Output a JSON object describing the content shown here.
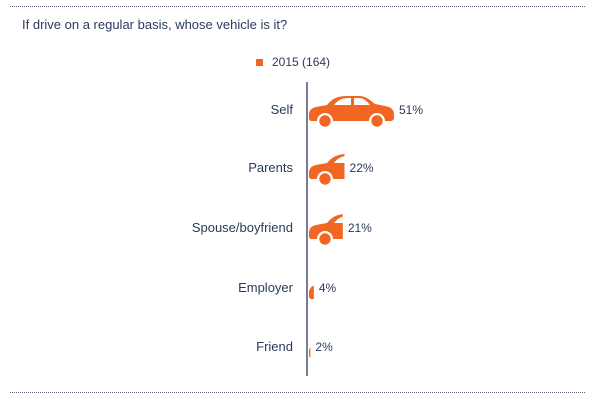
{
  "title": "If drive on a regular basis, whose vehicle is it?",
  "chart_data": {
    "type": "bar",
    "orientation": "horizontal",
    "title": "If drive on a regular basis, whose vehicle is it?",
    "categories": [
      "Self",
      "Parents",
      "Spouse/boyfriend",
      "Employer",
      "Friend"
    ],
    "series": [
      {
        "name": "2015 (164)",
        "values": [
          51,
          22,
          21,
          4,
          2
        ],
        "labels": [
          "51%",
          "22%",
          "21%",
          "4%",
          "2%"
        ],
        "color": "#f26522"
      }
    ],
    "xlim": [
      0,
      51
    ],
    "mark_shape": "car-silhouette",
    "legend_position": "top",
    "grid": false
  },
  "colors": {
    "accent": "#f26522",
    "text": "#2b3a5c",
    "axis": "#2b3a5c"
  }
}
